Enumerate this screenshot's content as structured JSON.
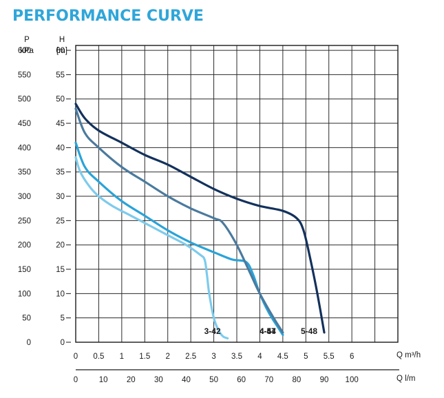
{
  "chart_data": {
    "type": "line",
    "title": "PERFORMANCE CURVE",
    "title_color": "#2fa6d9",
    "y_left_outer": {
      "label_line1": "P",
      "label_line2": "kPa",
      "ticks": [
        "600",
        "550",
        "500",
        "450",
        "400",
        "350",
        "300",
        "250",
        "200",
        "150",
        "100",
        "50",
        "0"
      ]
    },
    "y_left_inner": {
      "label_line1": "H",
      "label_line2": "[m]",
      "ticks": [
        "60",
        "55",
        "50",
        "45",
        "40",
        "35",
        "30",
        "25",
        "20",
        "15",
        "10",
        "5",
        "0"
      ],
      "ylim": [
        0,
        61
      ]
    },
    "x_top": {
      "label": "Q m³/h",
      "ticks": [
        "0",
        "0.5",
        "1",
        "1.5",
        "2",
        "2.5",
        "3",
        "3.5",
        "4",
        "4.5",
        "5",
        "5.5",
        "6"
      ],
      "xlim": [
        0,
        7
      ]
    },
    "x_bottom": {
      "label": "Q l/m",
      "ticks": [
        "0",
        "10",
        "20",
        "30",
        "40",
        "50",
        "60",
        "70",
        "80",
        "90",
        "100"
      ]
    },
    "grid": true,
    "series": [
      {
        "name": "3-42",
        "color": "#7dcbec",
        "x": [
          0,
          0.1,
          0.3,
          0.5,
          0.8,
          1.2,
          1.6,
          2.0,
          2.4,
          2.7,
          2.8,
          2.85,
          2.9,
          3.0,
          3.1,
          3.2,
          3.3
        ],
        "y": [
          38,
          35,
          32,
          30,
          28,
          26,
          24,
          22,
          20,
          18,
          17,
          14,
          10,
          5,
          2.5,
          1.2,
          0.8
        ]
      },
      {
        "name": "4-47",
        "color": "#2aa3d8",
        "x": [
          0,
          0.2,
          0.5,
          1.0,
          1.5,
          2.0,
          2.5,
          3.0,
          3.4,
          3.7,
          3.85,
          4.0,
          4.2,
          4.4,
          4.5
        ],
        "y": [
          41,
          36,
          33,
          29,
          26,
          23,
          20.5,
          18.5,
          17,
          16.5,
          14,
          10,
          6,
          3,
          1.5
        ]
      },
      {
        "name": "4-54",
        "color": "#4b7a9e",
        "x": [
          0,
          0.2,
          0.5,
          1.0,
          1.5,
          2.0,
          2.5,
          3.0,
          3.2,
          3.5,
          3.8,
          4.0,
          4.3,
          4.5
        ],
        "y": [
          48,
          43,
          40,
          36,
          33,
          30,
          27.5,
          25.5,
          24.5,
          20,
          14,
          10,
          5,
          2
        ]
      },
      {
        "name": "5-48",
        "color": "#13315c",
        "x": [
          0,
          0.2,
          0.5,
          1.0,
          1.5,
          2.0,
          2.5,
          3.0,
          3.5,
          4.0,
          4.5,
          4.8,
          4.95,
          5.1,
          5.25,
          5.4
        ],
        "y": [
          49,
          46,
          43.5,
          41,
          38.5,
          36.5,
          34,
          31.5,
          29.5,
          28,
          27,
          25.5,
          23,
          17,
          10,
          2
        ]
      }
    ]
  }
}
